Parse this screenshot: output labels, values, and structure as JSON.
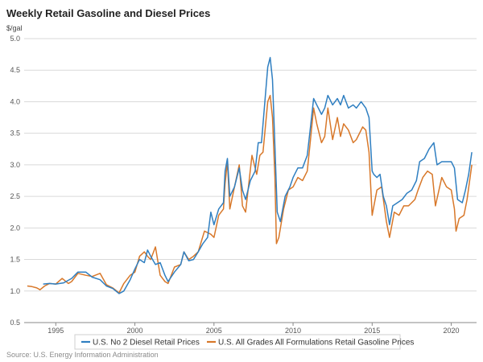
{
  "title": "Weekly Retail Gasoline and Diesel Prices",
  "source": "Source: U.S. Energy Information Administration",
  "chart_data": {
    "type": "line",
    "title": "Weekly Retail Gasoline and Diesel Prices",
    "ylabel": "$/gal",
    "xlabel": "",
    "ylim": [
      0.5,
      5.0
    ],
    "xlim": [
      1993.0,
      2021.6
    ],
    "yticks": [
      "0.5",
      "1.0",
      "1.5",
      "2.0",
      "2.5",
      "3.0",
      "3.5",
      "4.0",
      "4.5",
      "5.0"
    ],
    "xticks": [
      "1995",
      "2000",
      "2005",
      "2010",
      "2015",
      "2020"
    ],
    "grid": true,
    "legend_position": "bottom",
    "series": [
      {
        "name": "U.S. No 2 Diesel Retail Prices",
        "color": "#2f7fc1",
        "x": [
          1994.2,
          1994.6,
          1995.0,
          1995.5,
          1996.0,
          1996.4,
          1996.9,
          1997.3,
          1997.8,
          1998.2,
          1998.6,
          1999.0,
          1999.3,
          1999.7,
          2000.0,
          2000.3,
          2000.6,
          2000.8,
          2001.0,
          2001.3,
          2001.6,
          2001.9,
          2002.1,
          2002.5,
          2002.9,
          2003.1,
          2003.4,
          2003.7,
          2004.0,
          2004.3,
          2004.6,
          2004.8,
          2005.0,
          2005.3,
          2005.6,
          2005.7,
          2005.85,
          2006.0,
          2006.3,
          2006.6,
          2006.8,
          2007.0,
          2007.3,
          2007.6,
          2007.8,
          2008.0,
          2008.2,
          2008.4,
          2008.55,
          2008.7,
          2008.85,
          2009.0,
          2009.2,
          2009.5,
          2009.8,
          2010.0,
          2010.3,
          2010.6,
          2010.9,
          2011.1,
          2011.3,
          2011.5,
          2011.8,
          2012.0,
          2012.2,
          2012.5,
          2012.8,
          2013.0,
          2013.2,
          2013.5,
          2013.8,
          2014.0,
          2014.3,
          2014.6,
          2014.8,
          2015.0,
          2015.1,
          2015.3,
          2015.5,
          2015.7,
          2015.9,
          2016.1,
          2016.3,
          2016.6,
          2016.9,
          2017.2,
          2017.5,
          2017.8,
          2018.0,
          2018.3,
          2018.6,
          2018.9,
          2019.1,
          2019.4,
          2019.7,
          2020.0,
          2020.2,
          2020.4,
          2020.7,
          2020.9,
          2021.1,
          2021.3
        ],
        "values": [
          1.11,
          1.12,
          1.11,
          1.13,
          1.2,
          1.3,
          1.3,
          1.22,
          1.18,
          1.08,
          1.04,
          0.96,
          1.0,
          1.18,
          1.35,
          1.5,
          1.45,
          1.65,
          1.55,
          1.42,
          1.45,
          1.25,
          1.15,
          1.3,
          1.42,
          1.62,
          1.48,
          1.5,
          1.62,
          1.75,
          1.85,
          2.25,
          2.05,
          2.3,
          2.4,
          2.9,
          3.1,
          2.5,
          2.65,
          2.95,
          2.6,
          2.45,
          2.75,
          2.9,
          3.35,
          3.35,
          3.95,
          4.55,
          4.7,
          4.35,
          3.3,
          2.25,
          2.1,
          2.5,
          2.65,
          2.8,
          2.95,
          2.95,
          3.15,
          3.6,
          4.05,
          3.95,
          3.8,
          3.9,
          4.1,
          3.95,
          4.05,
          3.95,
          4.1,
          3.9,
          3.95,
          3.9,
          4.0,
          3.9,
          3.75,
          2.9,
          2.85,
          2.8,
          2.85,
          2.5,
          2.35,
          2.05,
          2.35,
          2.4,
          2.45,
          2.55,
          2.6,
          2.75,
          3.05,
          3.1,
          3.25,
          3.35,
          3.0,
          3.05,
          3.05,
          3.05,
          2.95,
          2.45,
          2.4,
          2.6,
          2.85,
          3.2
        ]
      },
      {
        "name": "U.S. All Grades All Formulations Retail Gasoline Prices",
        "color": "#d8782a",
        "x": [
          1993.2,
          1993.5,
          1993.8,
          1994.0,
          1994.3,
          1994.6,
          1995.0,
          1995.4,
          1995.8,
          1996.0,
          1996.4,
          1996.9,
          1997.3,
          1997.8,
          1998.2,
          1998.6,
          1999.0,
          1999.3,
          1999.7,
          2000.0,
          2000.3,
          2000.6,
          2000.8,
          2001.0,
          2001.3,
          2001.6,
          2001.9,
          2002.1,
          2002.5,
          2002.9,
          2003.1,
          2003.4,
          2003.7,
          2004.0,
          2004.4,
          2004.8,
          2005.0,
          2005.3,
          2005.6,
          2005.7,
          2005.85,
          2006.0,
          2006.3,
          2006.6,
          2006.8,
          2007.0,
          2007.4,
          2007.7,
          2007.9,
          2008.1,
          2008.4,
          2008.55,
          2008.7,
          2008.85,
          2008.95,
          2009.1,
          2009.4,
          2009.7,
          2010.0,
          2010.3,
          2010.6,
          2010.9,
          2011.1,
          2011.3,
          2011.5,
          2011.8,
          2012.0,
          2012.2,
          2012.5,
          2012.8,
          2013.0,
          2013.2,
          2013.5,
          2013.8,
          2014.0,
          2014.4,
          2014.6,
          2014.8,
          2015.0,
          2015.3,
          2015.6,
          2015.9,
          2016.1,
          2016.4,
          2016.7,
          2017.0,
          2017.3,
          2017.7,
          2017.9,
          2018.2,
          2018.5,
          2018.8,
          2019.0,
          2019.4,
          2019.7,
          2020.0,
          2020.2,
          2020.3,
          2020.5,
          2020.8,
          2021.0,
          2021.3
        ],
        "values": [
          1.08,
          1.07,
          1.05,
          1.02,
          1.08,
          1.12,
          1.11,
          1.2,
          1.12,
          1.15,
          1.28,
          1.25,
          1.23,
          1.28,
          1.1,
          1.05,
          0.97,
          1.12,
          1.25,
          1.3,
          1.55,
          1.62,
          1.55,
          1.5,
          1.7,
          1.25,
          1.15,
          1.12,
          1.38,
          1.42,
          1.62,
          1.5,
          1.55,
          1.62,
          1.95,
          1.9,
          1.85,
          2.2,
          2.3,
          2.7,
          3.05,
          2.3,
          2.65,
          3.0,
          2.35,
          2.25,
          3.15,
          2.85,
          3.15,
          3.2,
          4.0,
          4.1,
          3.75,
          2.8,
          1.75,
          1.85,
          2.3,
          2.6,
          2.65,
          2.8,
          2.75,
          2.9,
          3.4,
          3.9,
          3.65,
          3.35,
          3.45,
          3.9,
          3.4,
          3.75,
          3.45,
          3.65,
          3.55,
          3.35,
          3.4,
          3.6,
          3.55,
          3.2,
          2.2,
          2.6,
          2.65,
          2.1,
          1.85,
          2.25,
          2.2,
          2.35,
          2.35,
          2.45,
          2.6,
          2.8,
          2.9,
          2.85,
          2.35,
          2.8,
          2.65,
          2.6,
          2.3,
          1.95,
          2.15,
          2.2,
          2.45,
          3.0
        ]
      }
    ]
  }
}
